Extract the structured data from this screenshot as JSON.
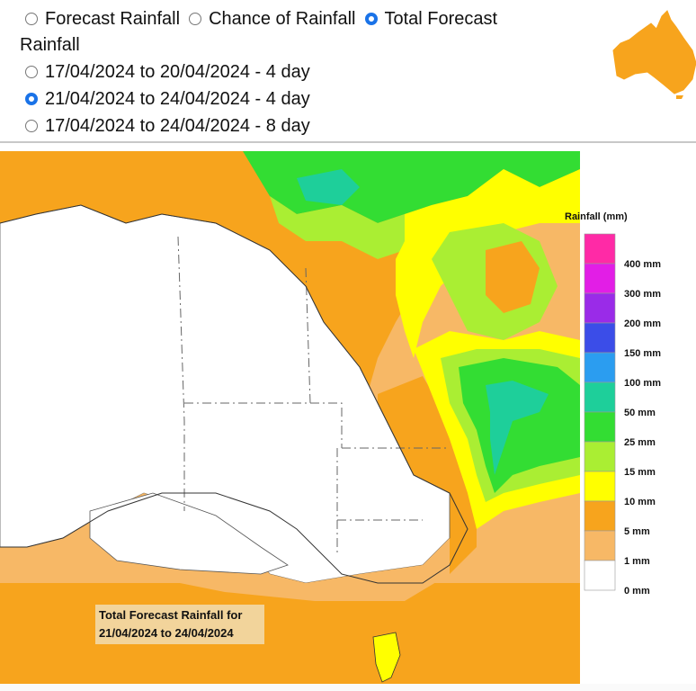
{
  "rainfall_type_options": [
    {
      "label": "Forecast Rainfall",
      "selected": false
    },
    {
      "label": "Chance of Rainfall",
      "selected": false
    },
    {
      "label": "Total Forecast",
      "selected": true
    }
  ],
  "rainfall_type_wrap": "Rainfall",
  "period_options": [
    {
      "label": "17/04/2024 to 20/04/2024 - 4 day",
      "selected": false
    },
    {
      "label": "21/04/2024 to 24/04/2024 - 4 day",
      "selected": true
    },
    {
      "label": "17/04/2024 to 24/04/2024 - 8 day",
      "selected": false
    }
  ],
  "legend": {
    "title": "Rainfall (mm)",
    "bins": [
      {
        "label": "400 mm",
        "color": "#ff2aa6"
      },
      {
        "label": "300 mm",
        "color": "#e21ee6"
      },
      {
        "label": "200 mm",
        "color": "#9a2be8"
      },
      {
        "label": "150 mm",
        "color": "#3b4de8"
      },
      {
        "label": "100 mm",
        "color": "#2b9df0"
      },
      {
        "label": "50 mm",
        "color": "#1ecf9a"
      },
      {
        "label": "25 mm",
        "color": "#33dd33"
      },
      {
        "label": "15 mm",
        "color": "#aaee33"
      },
      {
        "label": "10 mm",
        "color": "#ffff00"
      },
      {
        "label": "5 mm",
        "color": "#f7a41d"
      },
      {
        "label": "1 mm",
        "color": "#f7b866"
      },
      {
        "label": "0 mm",
        "color": "#ffffff"
      }
    ]
  },
  "caption": {
    "line1": "Total Forecast Rainfall for",
    "line2": "21/04/2024 to 24/04/2024"
  },
  "colors": {
    "radio_selected": "#1a73e8",
    "australia_icon": "#f7a41d"
  }
}
